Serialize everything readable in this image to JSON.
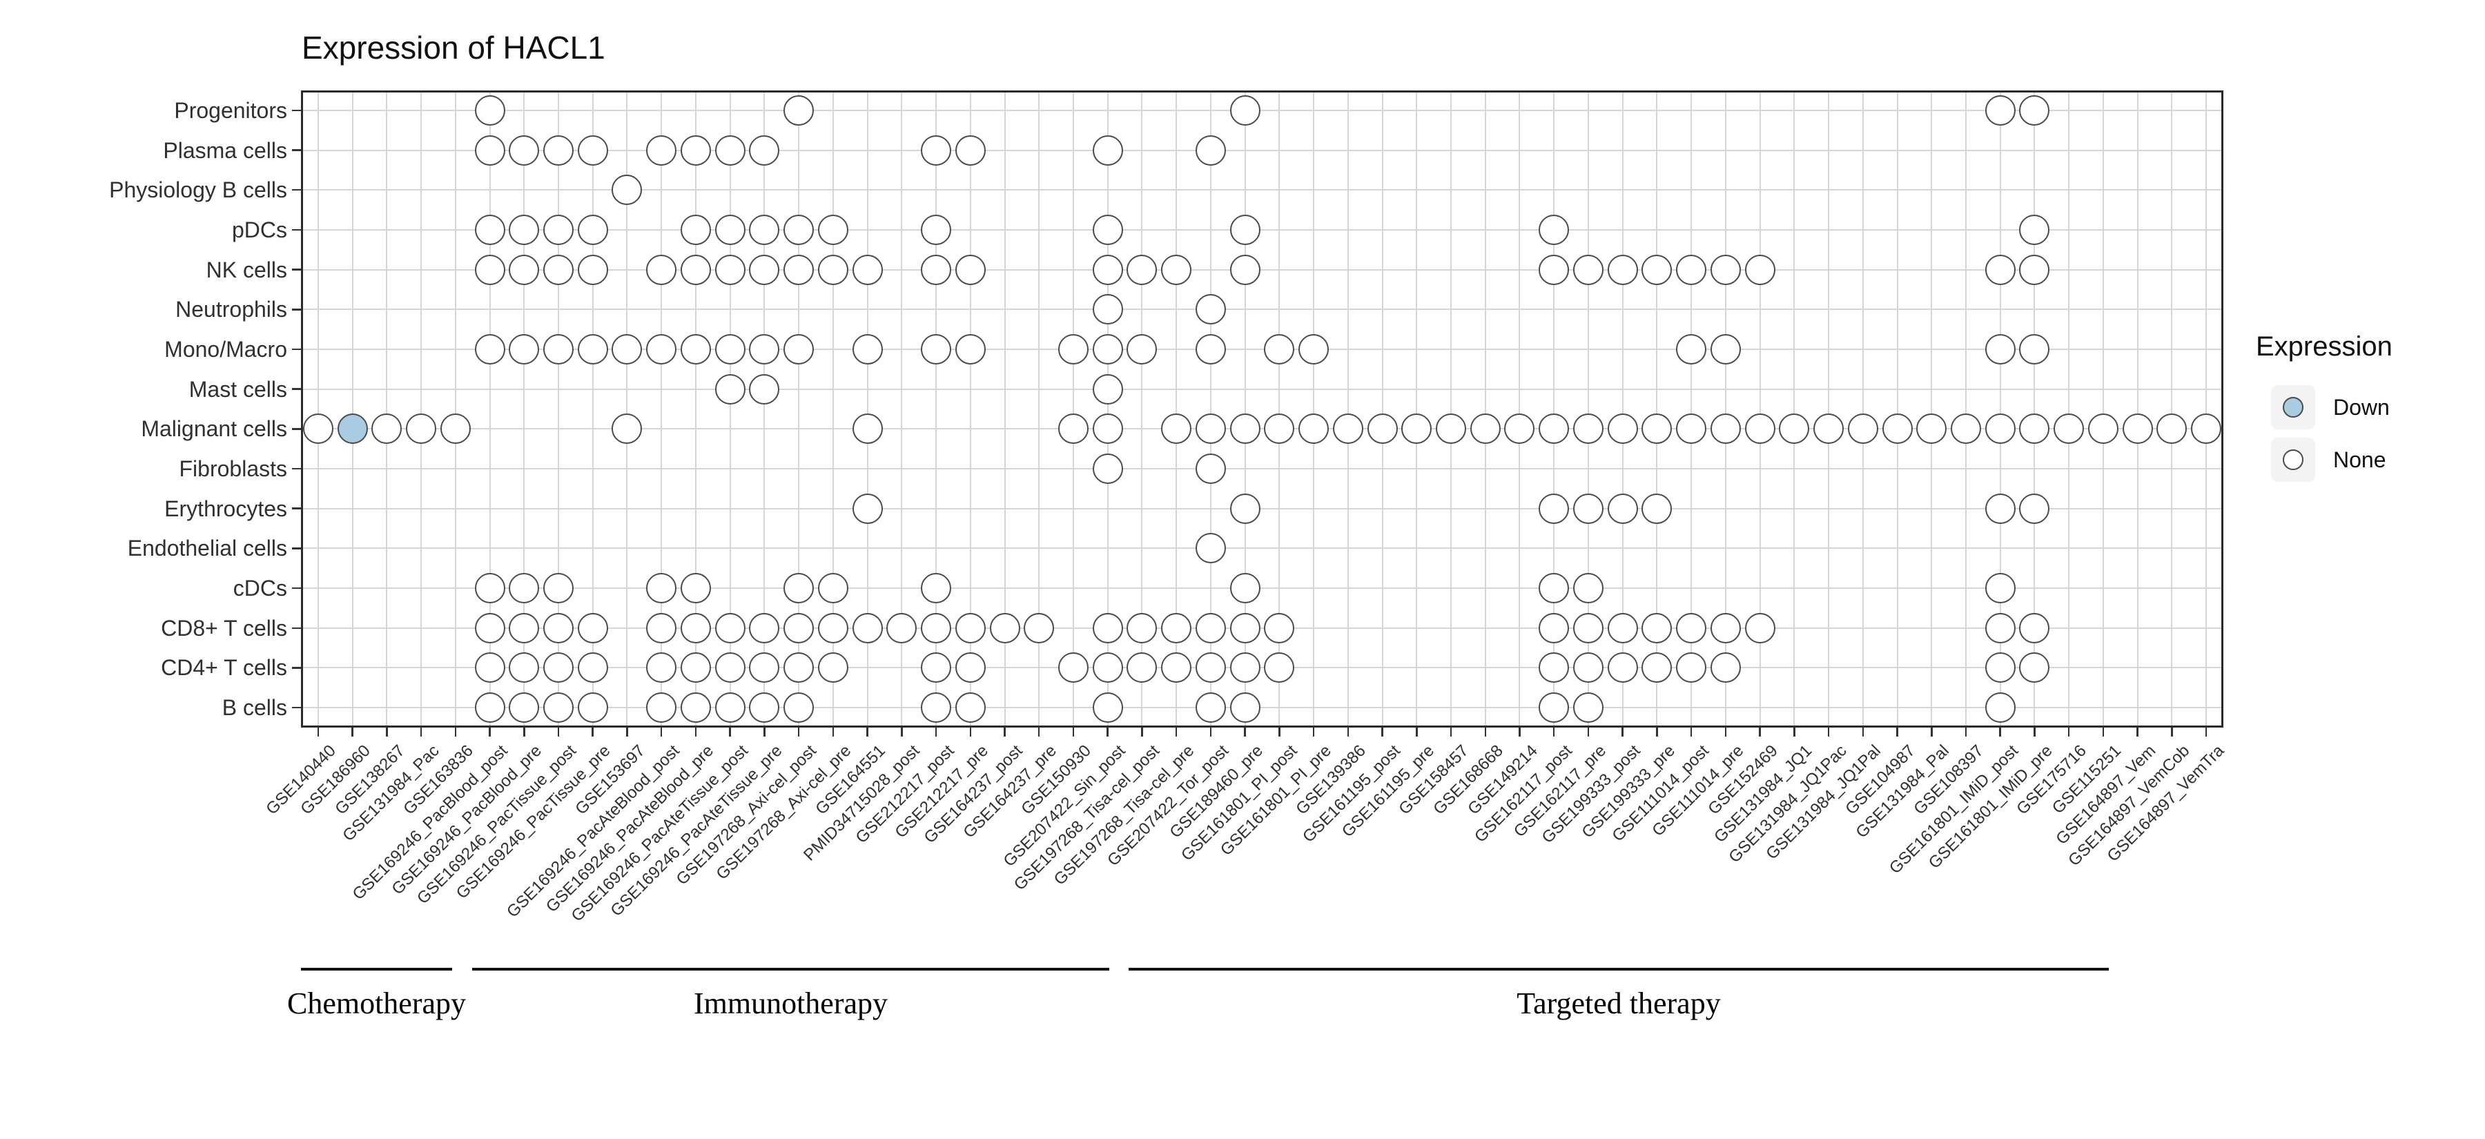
{
  "chart_data": {
    "type": "scatter",
    "title": "Expression of HACL1",
    "rows": [
      "Progenitors",
      "Plasma cells",
      "Physiology B cells",
      "pDCs",
      "NK cells",
      "Neutrophils",
      "Mono/Macro",
      "Mast cells",
      "Malignant cells",
      "Fibroblasts",
      "Erythrocytes",
      "Endothelial cells",
      "cDCs",
      "CD8+ T cells",
      "CD4+ T cells",
      "B cells"
    ],
    "columns": [
      "GSE140440",
      "GSE186960",
      "GSE138267",
      "GSE131984_Pac",
      "GSE163836",
      "GSE169246_PacBlood_post",
      "GSE169246_PacBlood_pre",
      "GSE169246_PacTissue_post",
      "GSE169246_PacTissue_pre",
      "GSE153697",
      "GSE169246_PacAteBlood_post",
      "GSE169246_PacAteBlood_pre",
      "GSE169246_PacAteTissue_post",
      "GSE169246_PacAteTissue_pre",
      "GSE197268_Axi-cel_post",
      "GSE197268_Axi-cel_pre",
      "GSE164551",
      "PMID34715028_post",
      "GSE212217_post",
      "GSE212217_pre",
      "GSE164237_post",
      "GSE164237_pre",
      "GSE150930",
      "GSE207422_Sin_post",
      "GSE197268_Tisa-cel_post",
      "GSE197268_Tisa-cel_pre",
      "GSE207422_Tor_post",
      "GSE189460_pre",
      "GSE161801_PI_post",
      "GSE161801_PI_pre",
      "GSE139386",
      "GSE161195_post",
      "GSE161195_pre",
      "GSE158457",
      "GSE168668",
      "GSE149214",
      "GSE162117_post",
      "GSE162117_pre",
      "GSE199333_post",
      "GSE199333_pre",
      "GSE111014_post",
      "GSE111014_pre",
      "GSE152469",
      "GSE131984_JQ1",
      "GSE131984_JQ1Pac",
      "GSE131984_JQ1Pal",
      "GSE104987",
      "GSE131984_Pal",
      "GSE108397",
      "GSE161801_IMiD_post",
      "GSE161801_IMiD_pre",
      "GSE175716",
      "GSE115251",
      "GSE164897_Vem",
      "GSE164897_VemCob",
      "GSE164897_VemTra"
    ],
    "points": {
      "Progenitors": [
        5,
        14,
        27,
        49,
        50
      ],
      "Plasma cells": [
        5,
        6,
        7,
        8,
        10,
        11,
        12,
        13,
        18,
        19,
        23,
        26
      ],
      "Physiology B cells": [
        9
      ],
      "pDCs": [
        5,
        6,
        7,
        8,
        11,
        12,
        13,
        14,
        15,
        18,
        23,
        27,
        36,
        50
      ],
      "NK cells": [
        5,
        6,
        7,
        8,
        10,
        11,
        12,
        13,
        14,
        15,
        16,
        18,
        19,
        23,
        24,
        25,
        27,
        36,
        37,
        38,
        39,
        40,
        41,
        42,
        49,
        50
      ],
      "Neutrophils": [
        23,
        26
      ],
      "Mono/Macro": [
        5,
        6,
        7,
        8,
        9,
        10,
        11,
        12,
        13,
        14,
        16,
        18,
        19,
        22,
        23,
        24,
        26,
        28,
        29,
        40,
        41,
        49,
        50
      ],
      "Mast cells": [
        12,
        13,
        23
      ],
      "Malignant cells": [
        0,
        2,
        3,
        4,
        9,
        16,
        22,
        23,
        25,
        26,
        27,
        28,
        29,
        30,
        31,
        32,
        33,
        34,
        35,
        36,
        37,
        38,
        39,
        40,
        41,
        42,
        43,
        44,
        45,
        46,
        47,
        48,
        49,
        50,
        51,
        52,
        53,
        54,
        55
      ],
      "Fibroblasts": [
        23,
        26
      ],
      "Erythrocytes": [
        16,
        27,
        36,
        37,
        38,
        39,
        49,
        50
      ],
      "Endothelial cells": [
        26
      ],
      "cDCs": [
        5,
        6,
        7,
        10,
        11,
        14,
        15,
        18,
        27,
        36,
        37,
        49
      ],
      "CD8+ T cells": [
        5,
        6,
        7,
        8,
        10,
        11,
        12,
        13,
        14,
        15,
        16,
        17,
        18,
        19,
        20,
        21,
        23,
        24,
        25,
        26,
        27,
        28,
        36,
        37,
        38,
        39,
        40,
        41,
        42,
        49,
        50
      ],
      "CD4+ T cells": [
        5,
        6,
        7,
        8,
        10,
        11,
        12,
        13,
        14,
        15,
        18,
        19,
        22,
        23,
        24,
        25,
        26,
        27,
        28,
        36,
        37,
        38,
        39,
        40,
        41,
        49,
        50
      ],
      "B cells": [
        5,
        6,
        7,
        8,
        10,
        11,
        12,
        13,
        14,
        18,
        19,
        23,
        26,
        27,
        36,
        37,
        49
      ]
    },
    "down_points": {
      "Malignant cells": [
        1
      ]
    },
    "legend": {
      "title": "Expression",
      "entries": [
        {
          "label": "Down",
          "color": "#a9cce3"
        },
        {
          "label": "None",
          "color": "#ffffff"
        }
      ]
    },
    "groups": [
      {
        "label": "Chemotherapy"
      },
      {
        "label": "Immunotherapy"
      },
      {
        "label": "Targeted therapy"
      }
    ]
  }
}
